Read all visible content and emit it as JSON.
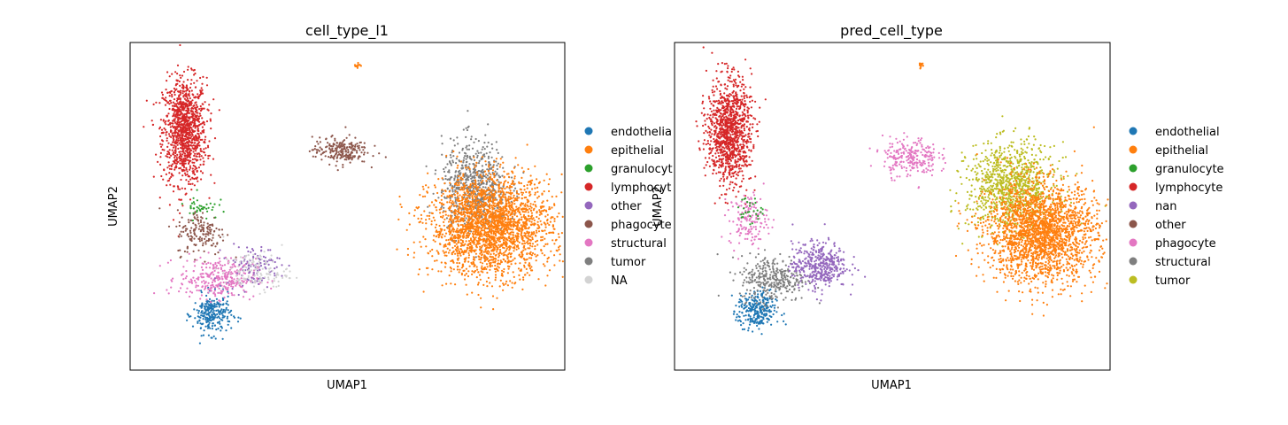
{
  "chart_data": [
    {
      "type": "scatter",
      "title": "cell_type_l1",
      "xlabel": "UMAP1",
      "ylabel": "UMAP2",
      "grid": false,
      "ticks": false,
      "legend_placement": "right",
      "categories": [
        {
          "name": "endothelial",
          "label": "endothelia",
          "color": "#1f77b4"
        },
        {
          "name": "epithelial",
          "label": "epithelial",
          "color": "#ff7f0e"
        },
        {
          "name": "granulocyte",
          "label": "granulocyt",
          "color": "#2ca02c"
        },
        {
          "name": "lymphocyte",
          "label": "lymphocyt",
          "color": "#d62728"
        },
        {
          "name": "other",
          "label": "other",
          "color": "#9467bd"
        },
        {
          "name": "phagocyte",
          "label": "phagocyte",
          "color": "#8c564b"
        },
        {
          "name": "structural",
          "label": "structural",
          "color": "#e377c2"
        },
        {
          "name": "tumor",
          "label": "tumor",
          "color": "#7f7f7f"
        },
        {
          "name": "NA",
          "label": "NA",
          "color": "#d3d3d3"
        }
      ],
      "clusters": [
        {
          "category": "lymphocyte",
          "center": [
            2.0,
            7.3
          ],
          "spread": [
            0.8,
            1.6
          ],
          "n": 1100
        },
        {
          "category": "endothelial",
          "center": [
            3.0,
            1.7
          ],
          "spread": [
            0.7,
            0.6
          ],
          "n": 260
        },
        {
          "category": "structural",
          "center": [
            3.2,
            2.8
          ],
          "spread": [
            1.4,
            0.6
          ],
          "n": 320
        },
        {
          "category": "phagocyte",
          "center": [
            2.6,
            4.2
          ],
          "spread": [
            0.9,
            0.7
          ],
          "n": 160
        },
        {
          "category": "granulocyte",
          "center": [
            2.6,
            5.0
          ],
          "spread": [
            0.6,
            0.4
          ],
          "n": 40
        },
        {
          "category": "other",
          "center": [
            4.5,
            3.2
          ],
          "spread": [
            1.0,
            0.6
          ],
          "n": 110
        },
        {
          "category": "NA",
          "center": [
            4.6,
            3.0
          ],
          "spread": [
            1.2,
            0.6
          ],
          "n": 130
        },
        {
          "category": "phagocyte",
          "center": [
            7.7,
            6.7
          ],
          "spread": [
            1.0,
            0.4
          ],
          "n": 220
        },
        {
          "category": "tumor",
          "center": [
            12.6,
            5.6
          ],
          "spread": [
            1.2,
            1.4
          ],
          "n": 700
        },
        {
          "category": "epithelial",
          "center": [
            13.2,
            4.4
          ],
          "spread": [
            2.2,
            1.5
          ],
          "n": 2400
        },
        {
          "category": "epithelial",
          "center": [
            8.3,
            9.3
          ],
          "spread": [
            0.12,
            0.1
          ],
          "n": 14
        }
      ],
      "xlim": [
        0,
        15.9
      ],
      "ylim": [
        0,
        10
      ]
    },
    {
      "type": "scatter",
      "title": "pred_cell_type",
      "xlabel": "UMAP1",
      "ylabel": "UMAP2",
      "grid": false,
      "ticks": false,
      "legend_placement": "right",
      "categories": [
        {
          "name": "endothelial",
          "label": "endothelial",
          "color": "#1f77b4"
        },
        {
          "name": "epithelial",
          "label": "epithelial",
          "color": "#ff7f0e"
        },
        {
          "name": "granulocyte",
          "label": "granulocyte",
          "color": "#2ca02c"
        },
        {
          "name": "lymphocyte",
          "label": "lymphocyte",
          "color": "#d62728"
        },
        {
          "name": "nan",
          "label": "nan",
          "color": "#9467bd"
        },
        {
          "name": "other",
          "label": "other",
          "color": "#8c564b"
        },
        {
          "name": "phagocyte",
          "label": "phagocyte",
          "color": "#e377c2"
        },
        {
          "name": "structural",
          "label": "structural",
          "color": "#7f7f7f"
        },
        {
          "name": "tumor",
          "label": "tumor",
          "color": "#bcbd22"
        }
      ],
      "clusters": [
        {
          "category": "lymphocyte",
          "center": [
            2.0,
            7.3
          ],
          "spread": [
            0.8,
            1.6
          ],
          "n": 1100
        },
        {
          "category": "endothelial",
          "center": [
            3.0,
            1.8
          ],
          "spread": [
            0.7,
            0.6
          ],
          "n": 280
        },
        {
          "category": "structural",
          "center": [
            3.6,
            2.8
          ],
          "spread": [
            1.2,
            0.7
          ],
          "n": 330
        },
        {
          "category": "phagocyte",
          "center": [
            2.7,
            4.6
          ],
          "spread": [
            0.7,
            0.8
          ],
          "n": 150
        },
        {
          "category": "granulocyte",
          "center": [
            2.7,
            4.9
          ],
          "spread": [
            0.5,
            0.4
          ],
          "n": 30
        },
        {
          "category": "nan",
          "center": [
            5.3,
            3.2
          ],
          "spread": [
            1.0,
            0.7
          ],
          "n": 420
        },
        {
          "category": "phagocyte",
          "center": [
            8.6,
            6.5
          ],
          "spread": [
            1.0,
            0.6
          ],
          "n": 240
        },
        {
          "category": "tumor",
          "center": [
            12.3,
            5.6
          ],
          "spread": [
            1.6,
            1.3
          ],
          "n": 1000
        },
        {
          "category": "epithelial",
          "center": [
            13.4,
            4.2
          ],
          "spread": [
            2.0,
            1.5
          ],
          "n": 2200
        },
        {
          "category": "epithelial",
          "center": [
            9.0,
            9.3
          ],
          "spread": [
            0.12,
            0.1
          ],
          "n": 14
        }
      ],
      "xlim": [
        0,
        15.9
      ],
      "ylim": [
        0,
        10
      ]
    }
  ]
}
